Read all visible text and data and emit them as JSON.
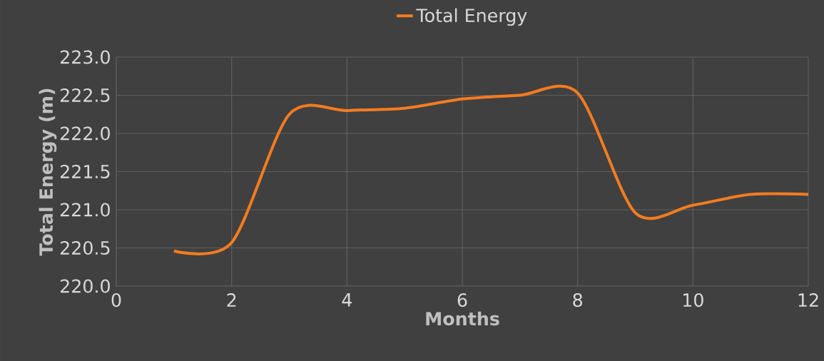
{
  "chart_data": {
    "type": "line",
    "xlabel": "Months",
    "ylabel": "Total Energy (m)",
    "x": [
      1,
      2,
      3,
      4,
      5,
      6,
      7,
      8,
      9,
      10,
      11,
      12
    ],
    "series": [
      {
        "name": "Total Energy",
        "color": "#f47c20",
        "values": [
          220.46,
          220.57,
          222.25,
          222.3,
          222.33,
          222.45,
          222.5,
          222.53,
          220.96,
          221.06,
          221.2,
          221.2
        ]
      }
    ],
    "xlim": [
      0,
      12
    ],
    "xticks": [
      0,
      2,
      4,
      6,
      8,
      10,
      12
    ],
    "ylim": [
      220,
      223
    ],
    "yticks": [
      {
        "value": 220,
        "label": "220.0"
      },
      {
        "value": 220.5,
        "label": "220.5"
      },
      {
        "value": 221,
        "label": "221.0"
      },
      {
        "value": 221.5,
        "label": "221.5"
      },
      {
        "value": 222,
        "label": "222.0"
      },
      {
        "value": 222.5,
        "label": "222.5"
      },
      {
        "value": 223,
        "label": "223.0"
      }
    ],
    "grid": true,
    "legend": "top",
    "marker": "none",
    "line_style": "solid"
  }
}
